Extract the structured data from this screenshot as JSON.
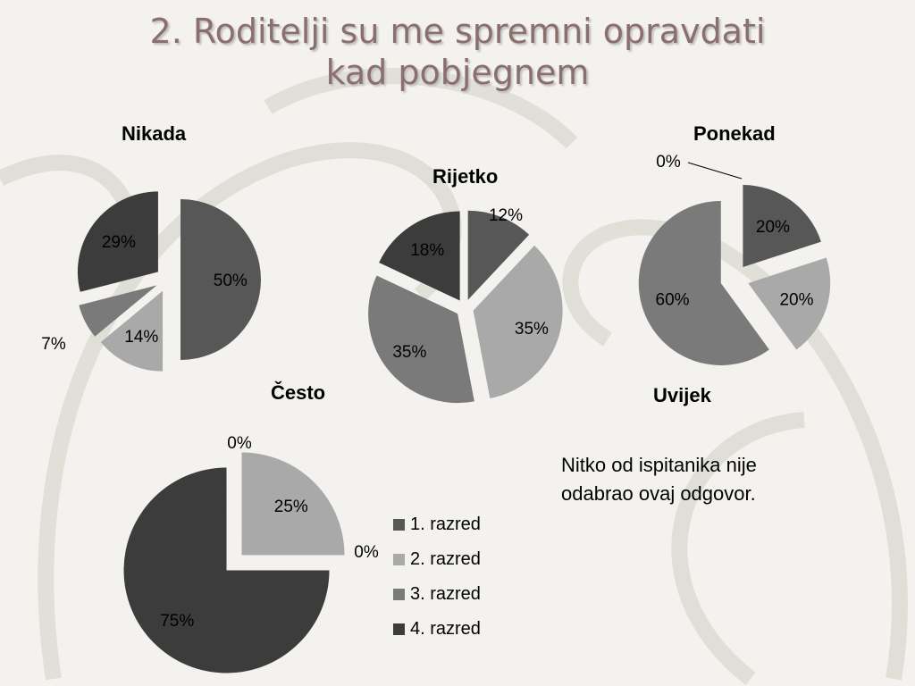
{
  "title_line1": "2. Roditelji su me spremni opravdati",
  "title_line2": "kad pobjegnem",
  "colors": {
    "1. razred": "#575757",
    "2. razred": "#a9a9a9",
    "3. razred": "#7a7a7a",
    "4. razred": "#3c3c3c"
  },
  "note_line1": "Nitko od ispitanika nije",
  "note_line2": "odabrao ovaj odgovor.",
  "chart_data": [
    {
      "type": "pie",
      "title": "Nikada",
      "categories": [
        "1. razred",
        "2. razred",
        "3. razred",
        "4. razred"
      ],
      "values": [
        50,
        14,
        7,
        29
      ],
      "labels": [
        "50%",
        "14%",
        "7%",
        "29%"
      ]
    },
    {
      "type": "pie",
      "title": "Rijetko",
      "categories": [
        "1. razred",
        "2. razred",
        "3. razred",
        "4. razred"
      ],
      "values": [
        12,
        35,
        35,
        18
      ],
      "labels": [
        "12%",
        "35%",
        "35%",
        "18%"
      ]
    },
    {
      "type": "pie",
      "title": "Ponekad",
      "categories": [
        "1. razred",
        "2. razred",
        "3. razred",
        "4. razred"
      ],
      "values": [
        20,
        20,
        60,
        0
      ],
      "labels": [
        "20%",
        "20%",
        "60%",
        "0%"
      ]
    },
    {
      "type": "pie",
      "title": "Često",
      "categories": [
        "1. razred",
        "2. razred",
        "3. razred",
        "4. razred"
      ],
      "values": [
        0,
        25,
        0,
        75
      ],
      "labels": [
        "0%",
        "25%",
        "0%",
        "75%"
      ],
      "legend": "right"
    },
    {
      "type": "pie",
      "title": "Uvijek",
      "categories": [
        "1. razred",
        "2. razred",
        "3. razred",
        "4. razred"
      ],
      "values": [],
      "labels": []
    }
  ],
  "legend": [
    "1. razred",
    "2. razred",
    "3. razred",
    "4. razred"
  ]
}
